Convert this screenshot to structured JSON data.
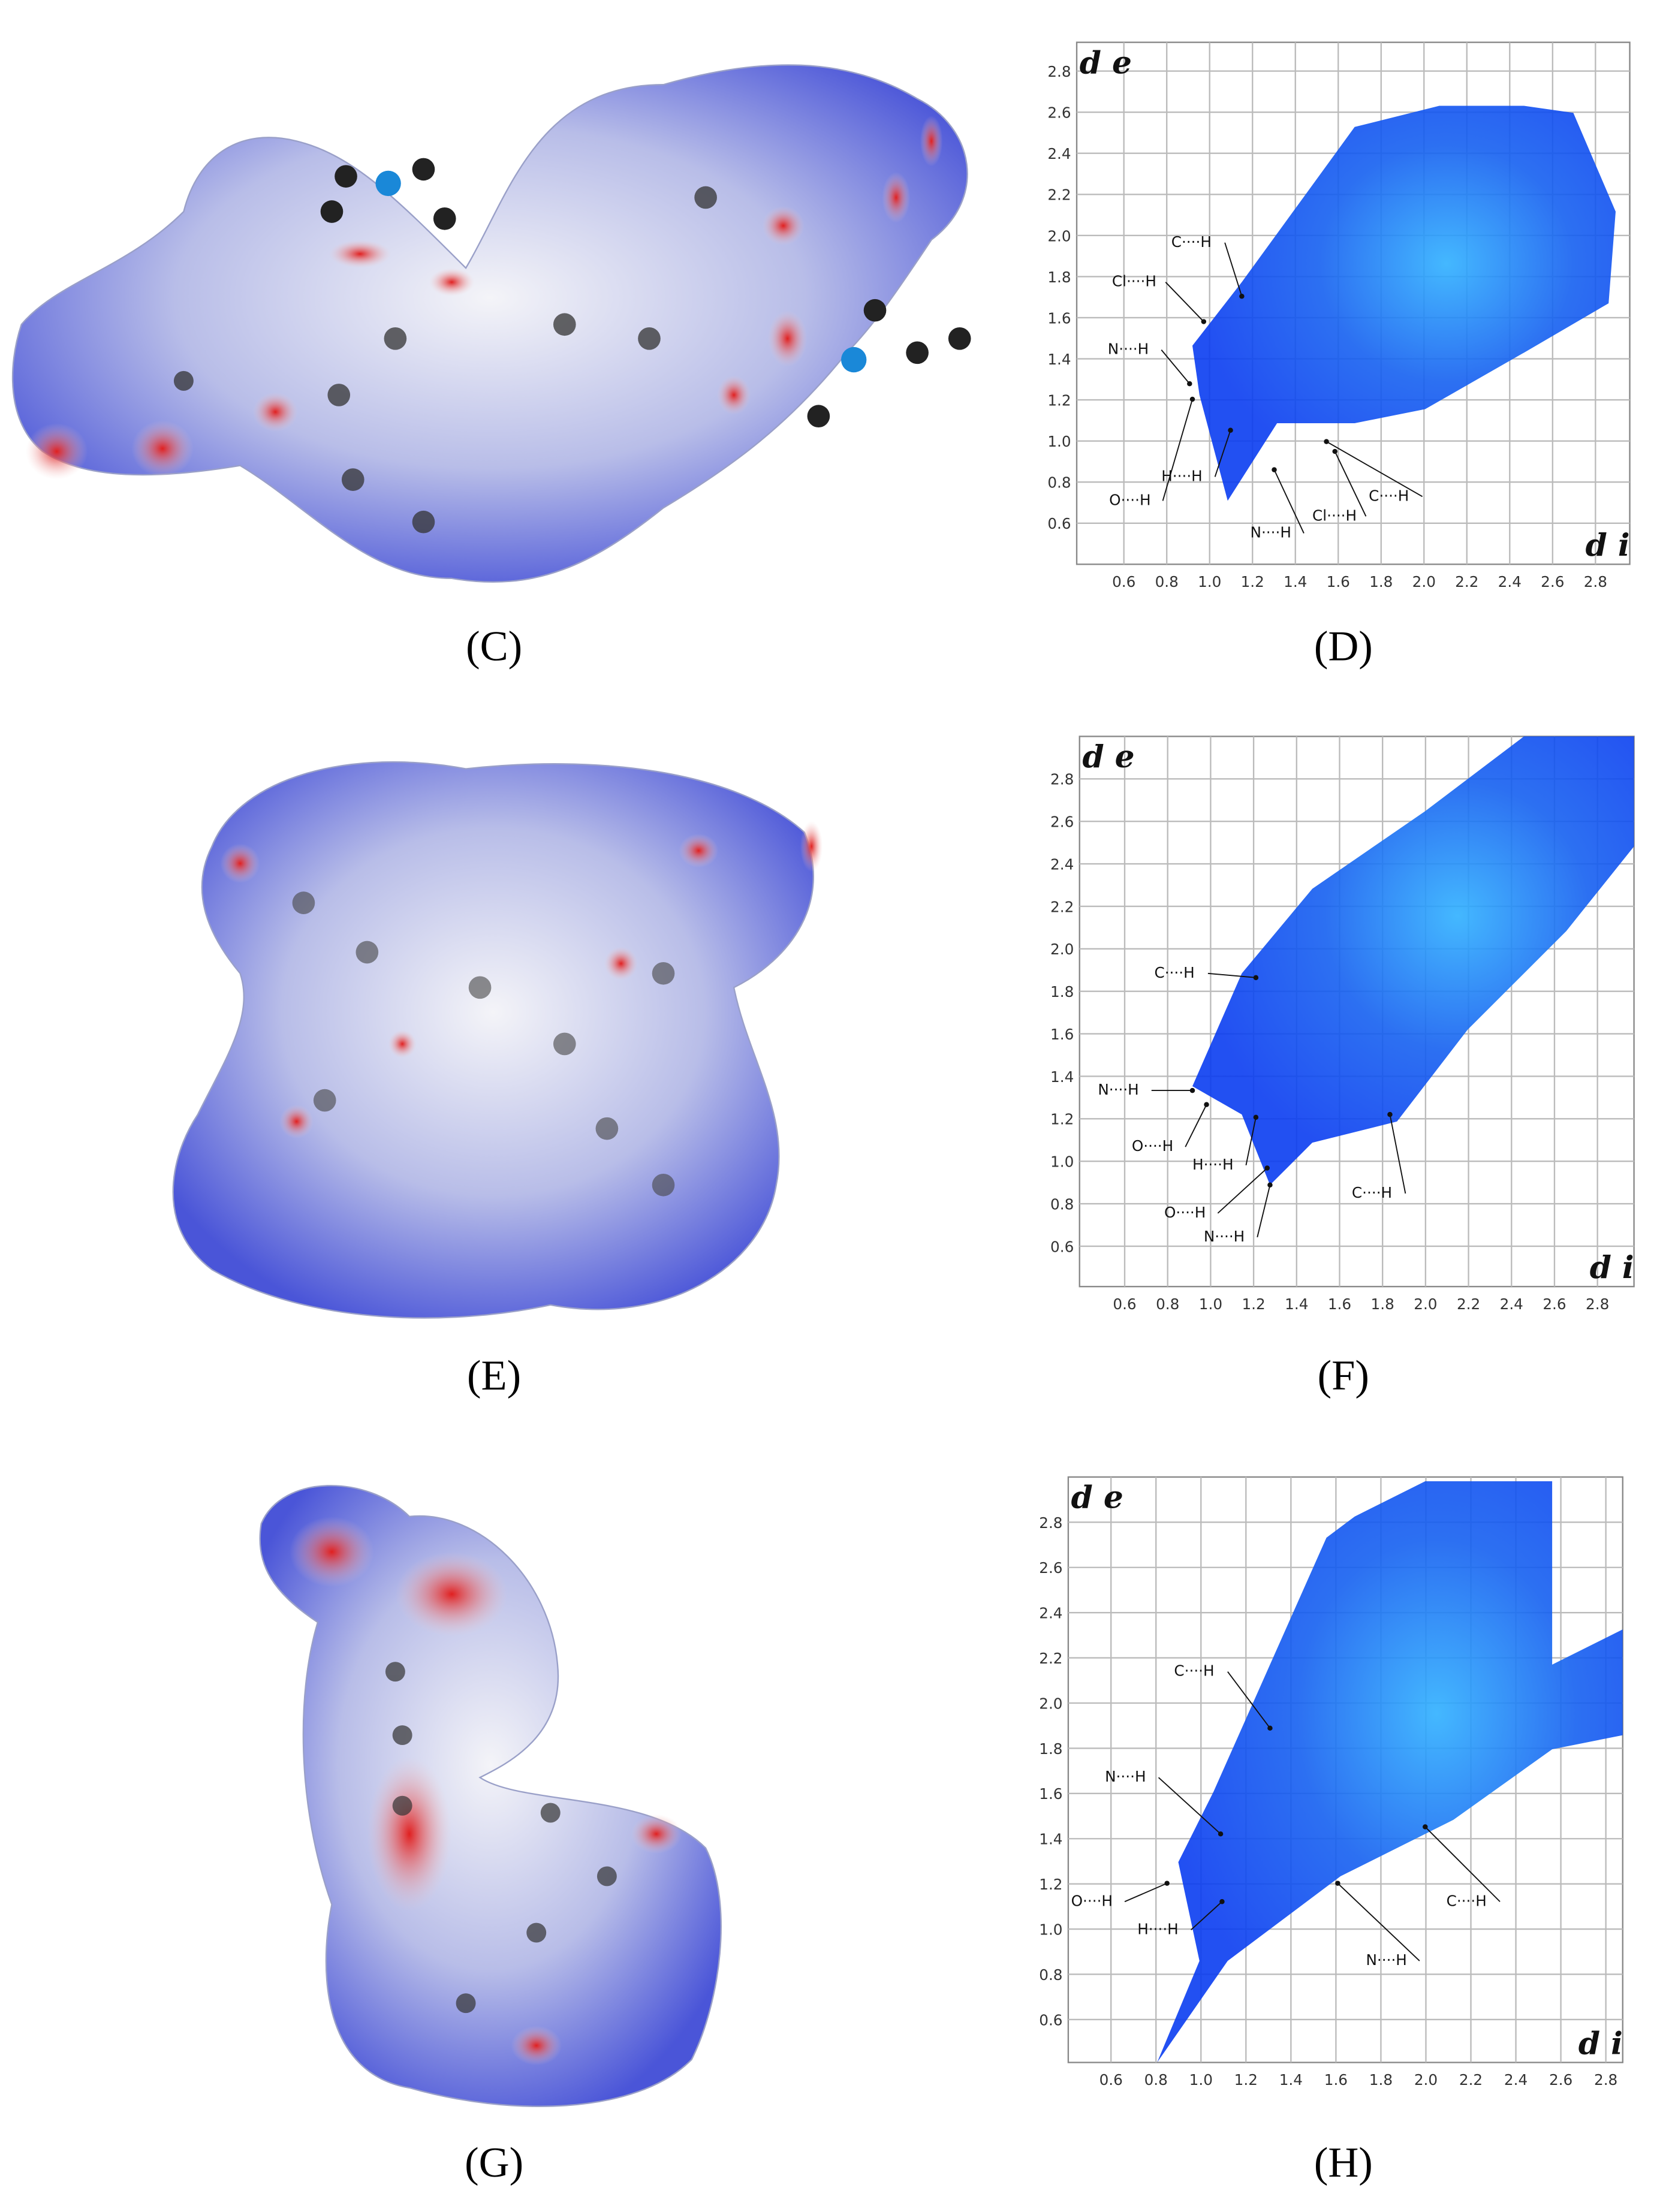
{
  "panels": [
    {
      "label": "(C)"
    },
    {
      "label": "(D)",
      "plot": {
        "y_axis_label": "d e",
        "x_axis_label": "d i",
        "xlim": [
          0.38,
          2.96
        ],
        "ylim": [
          0.4,
          2.94
        ],
        "xticks": [
          0.6,
          0.8,
          {
            "value": 1,
            "label": "1.0"
          },
          1.2,
          1.4,
          1.6,
          1.8,
          {
            "value": 2,
            "label": "2.0"
          },
          2.2,
          2.4,
          2.6,
          2.8
        ],
        "yticks": [
          0.6,
          0.8,
          {
            "value": 1,
            "label": "1.0"
          },
          1.2,
          1.4,
          1.6,
          1.8,
          {
            "value": 2,
            "label": "2.0"
          },
          2.2,
          2.4,
          2.6,
          2.8
        ],
        "annotations": [
          "C····H",
          "Cl····H",
          "N····H",
          "O····H",
          "H····H",
          "N····H",
          "Cl····H",
          "C····H"
        ]
      }
    },
    {
      "label": "(E)"
    },
    {
      "label": "(F)",
      "plot": {
        "y_axis_label": "d e",
        "x_axis_label": "d i",
        "xlim": [
          0.39,
          2.97
        ],
        "ylim": [
          0.41,
          3.0
        ],
        "xticks": [
          0.6,
          0.8,
          {
            "value": 1,
            "label": "1.0"
          },
          1.2,
          1.4,
          1.6,
          1.8,
          {
            "value": 2,
            "label": "2.0"
          },
          2.2,
          2.4,
          2.6,
          2.8
        ],
        "yticks": [
          0.6,
          0.8,
          {
            "value": 1,
            "label": "1.0"
          },
          1.2,
          1.4,
          1.6,
          1.8,
          {
            "value": 2,
            "label": "2.0"
          },
          2.2,
          2.4,
          2.6,
          2.8
        ],
        "annotations": [
          "C····H",
          "N····H",
          "O····H",
          "H····H",
          "O····H",
          "N····H",
          "C····H"
        ]
      }
    },
    {
      "label": "(G)"
    },
    {
      "label": "(H)",
      "plot": {
        "y_axis_label": "d e",
        "x_axis_label": "d i",
        "xlim": [
          0.41,
          2.875
        ],
        "ylim": [
          0.41,
          3.0
        ],
        "xticks": [
          0.6,
          0.8,
          {
            "value": 1,
            "label": "1.0"
          },
          1.2,
          1.4,
          1.6,
          1.8,
          {
            "value": 2,
            "label": "2.0"
          },
          2.2,
          2.4,
          2.6,
          2.8
        ],
        "yticks": [
          0.6,
          0.8,
          {
            "value": 1,
            "label": "1.0"
          },
          1.2,
          1.4,
          1.6,
          1.8,
          {
            "value": 2,
            "label": "2.0"
          },
          2.2,
          2.4,
          2.6,
          2.8
        ],
        "annotations": [
          "C····H",
          "N····H",
          "O····H",
          "H····H",
          "N····H",
          "C····H"
        ]
      }
    }
  ]
}
